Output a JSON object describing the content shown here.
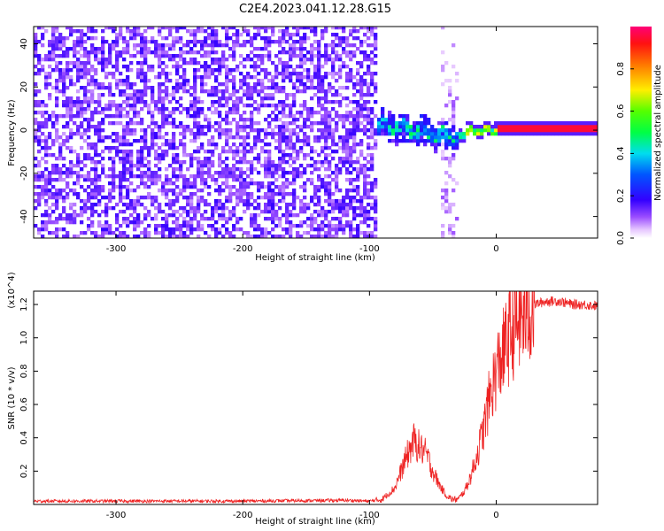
{
  "title": "C2E4.2023.041.12.28.G15",
  "chart_data": [
    {
      "type": "heatmap",
      "xlabel": "Height of straight line (km)",
      "ylabel": "Frequency (Hz)",
      "xlim": [
        -365,
        80
      ],
      "ylim": [
        -50,
        48
      ],
      "x_ticks": [
        "-300",
        "-200",
        "-100",
        "0"
      ],
      "x_tick_values": [
        -300,
        -200,
        -100,
        0
      ],
      "y_ticks": [
        "40",
        "20",
        "0",
        "-20",
        "-40"
      ],
      "y_tick_values": [
        40,
        20,
        0,
        -20,
        -40
      ],
      "colorbar": {
        "label": "Normalized spectral amplitude",
        "range": [
          0,
          1
        ],
        "ticks": [
          "0.0",
          "0.2",
          "0.4",
          "0.6",
          "0.8"
        ],
        "tick_values": [
          0.0,
          0.2,
          0.4,
          0.6,
          0.8
        ]
      },
      "features": [
        {
          "x_range": [
            -365,
            -95
          ],
          "frequency_range": [
            -50,
            48
          ],
          "amplitude": [
            0.0,
            0.12
          ],
          "pattern": "broadband noise"
        },
        {
          "x_range": [
            -95,
            -30
          ],
          "frequency_center": [
            2,
            -5
          ],
          "amplitude": [
            0.2,
            0.5
          ],
          "pattern": "noisy band"
        },
        {
          "x_range": [
            -45,
            -30
          ],
          "frequency_range": [
            -50,
            48
          ],
          "amplitude": [
            0.0,
            0.1
          ],
          "pattern": "vertical stripe"
        },
        {
          "x_range": [
            -30,
            0
          ],
          "frequency_center": [
            -2,
            0
          ],
          "amplitude": [
            0.4,
            0.7
          ],
          "pattern": "wavy line"
        },
        {
          "x_range": [
            0,
            80
          ],
          "frequency_center": [
            0,
            0
          ],
          "amplitude": [
            0.8,
            1.0
          ],
          "pattern": "steady line"
        }
      ]
    },
    {
      "type": "line",
      "xlabel": "Height of straight line (km)",
      "ylabel": "SNR (10 * v/v)",
      "y_multiplier": "(x10^4)",
      "xlim": [
        -365,
        80
      ],
      "ylim": [
        0,
        1.28
      ],
      "x_ticks": [
        "-300",
        "-200",
        "-100",
        "0"
      ],
      "x_tick_values": [
        -300,
        -200,
        -100,
        0
      ],
      "y_ticks": [
        "0.2",
        "0.4",
        "0.6",
        "0.8",
        "1.0",
        "1.2"
      ],
      "y_tick_values": [
        0.2,
        0.4,
        0.6,
        0.8,
        1.0,
        1.2
      ],
      "series": [
        {
          "color": "#ee2222",
          "x": [
            -365,
            -300,
            -200,
            -120,
            -100,
            -90,
            -80,
            -75,
            -70,
            -65,
            -60,
            -55,
            -50,
            -45,
            -40,
            -35,
            -30,
            -25,
            -20,
            -15,
            -10,
            -5,
            0,
            5,
            10,
            15,
            20,
            25,
            30,
            40,
            50,
            60,
            70,
            80
          ],
          "y": [
            0.02,
            0.02,
            0.02,
            0.025,
            0.02,
            0.03,
            0.1,
            0.2,
            0.3,
            0.38,
            0.34,
            0.3,
            0.2,
            0.12,
            0.06,
            0.03,
            0.03,
            0.08,
            0.17,
            0.3,
            0.45,
            0.65,
            0.8,
            0.9,
            1.0,
            1.08,
            1.12,
            1.16,
            1.2,
            1.22,
            1.22,
            1.2,
            1.2,
            1.19
          ]
        }
      ]
    }
  ]
}
